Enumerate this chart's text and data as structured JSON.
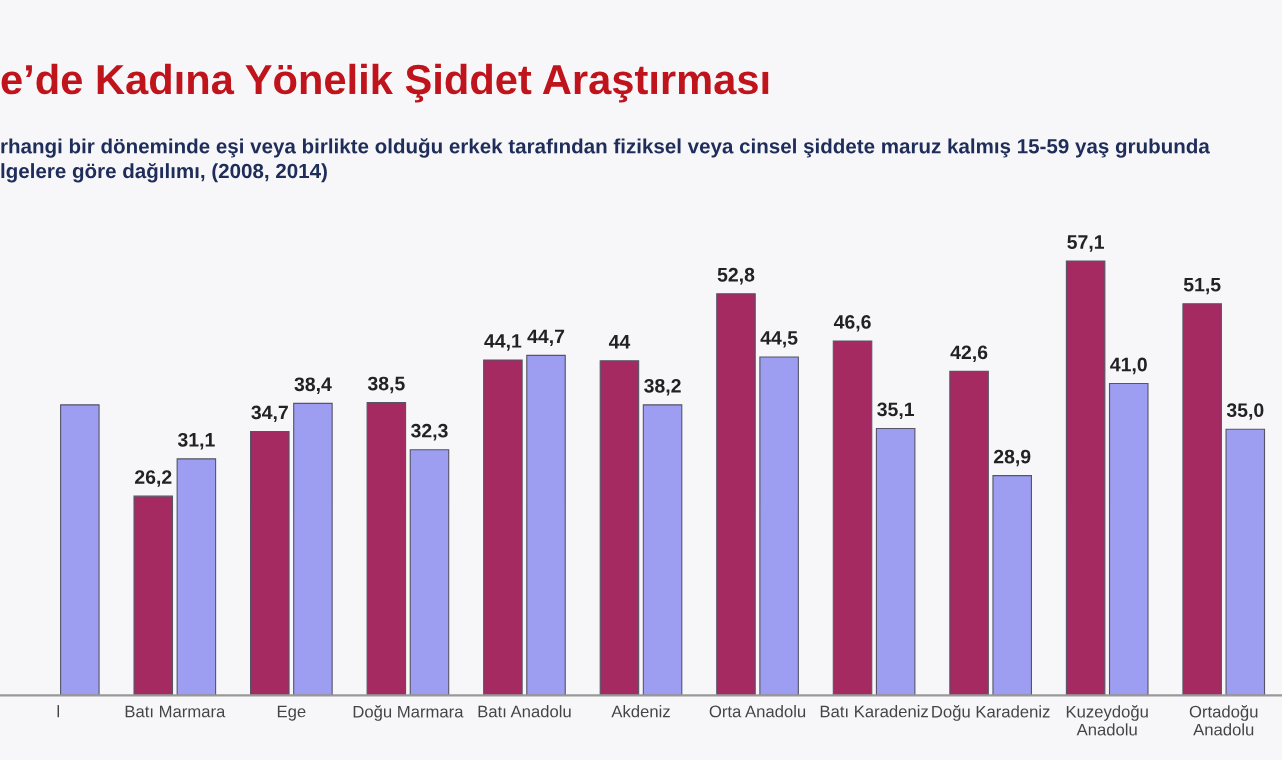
{
  "chart_data": {
    "type": "bar",
    "title": "e’de Kadına Yönelik Şiddet Araştırması",
    "subtitle": "rhangi bir döneminde eşi veya birlikte olduğu erkek tarafından fiziksel veya cinsel şiddete maruz kalmış 15-59 yaş grubunda\nlgelere göre dağılımı, (2008, 2014)",
    "categories": [
      "l",
      "Batı Marmara",
      "Ege",
      "Doğu Marmara",
      "Batı Anadolu",
      "Akdeniz",
      "Orta Anadolu",
      "Batı Karadeniz",
      "Doğu Karadeniz",
      "Kuzeydoğu\nAnadolu",
      "Ortadoğu\nAnadolu"
    ],
    "series": [
      {
        "color": "#a52a62",
        "values": [
          null,
          26.2,
          34.7,
          38.5,
          44.1,
          44,
          52.8,
          46.6,
          42.6,
          57.1,
          51.5
        ],
        "value_labels": [
          null,
          "26,2",
          "34,7",
          "38,5",
          "44,1",
          "44",
          "52,8",
          "46,6",
          "42,6",
          "57,1",
          "51,5"
        ]
      },
      {
        "color": "#9d9df2",
        "values": [
          38.2,
          31.1,
          38.4,
          32.3,
          44.7,
          38.2,
          44.5,
          35.1,
          28.9,
          41.0,
          35.0
        ],
        "value_labels": [
          null,
          "31,1",
          "38,4",
          "32,3",
          "44,7",
          "38,2",
          "44,5",
          "35,1",
          "28,9",
          "41,0",
          "35,0"
        ]
      }
    ],
    "tick_labels": "x",
    "grid": false,
    "legend": false
  }
}
